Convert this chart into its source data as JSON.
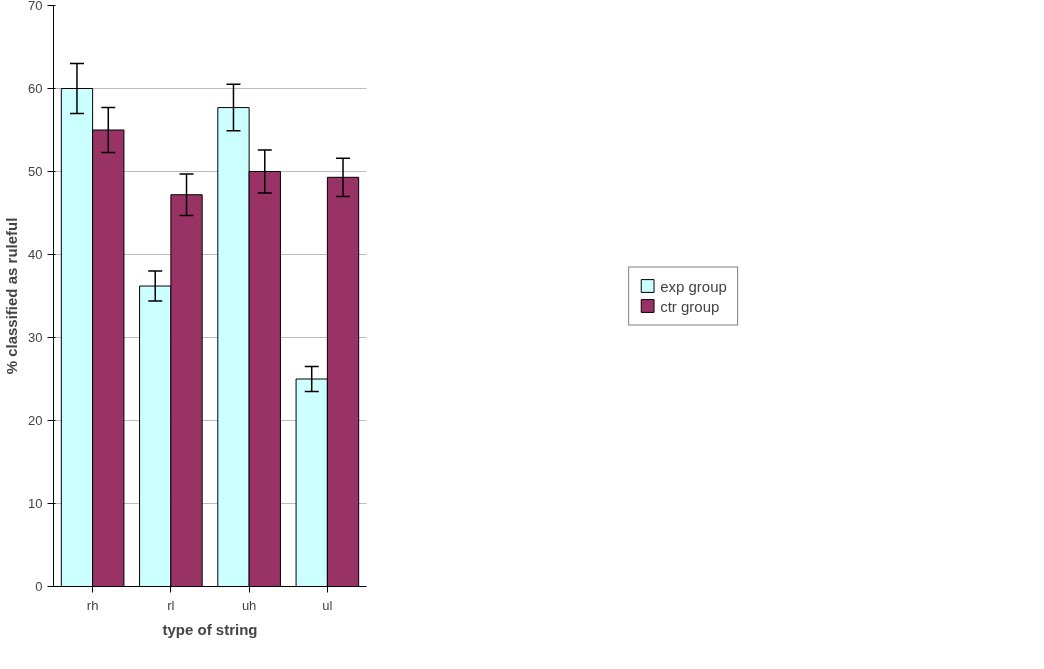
{
  "chart_data": {
    "type": "bar",
    "xlabel": "type of string",
    "ylabel": "% classified as ruleful",
    "categories": [
      "rh",
      "rl",
      "uh",
      "ul"
    ],
    "series": [
      {
        "name": "exp group",
        "color": "#ccffff",
        "values": [
          60,
          36.2,
          57.7,
          25
        ],
        "errors": [
          3,
          1.8,
          2.8,
          1.5
        ]
      },
      {
        "name": "ctr group",
        "color": "#993366",
        "values": [
          55,
          47.2,
          50,
          49.3
        ],
        "errors": [
          2.7,
          2.5,
          2.6,
          2.3
        ]
      }
    ],
    "ylim": [
      0,
      70
    ],
    "yticks": [
      0,
      10,
      20,
      30,
      40,
      50,
      60,
      70
    ],
    "grid": "y",
    "legend": "right"
  }
}
